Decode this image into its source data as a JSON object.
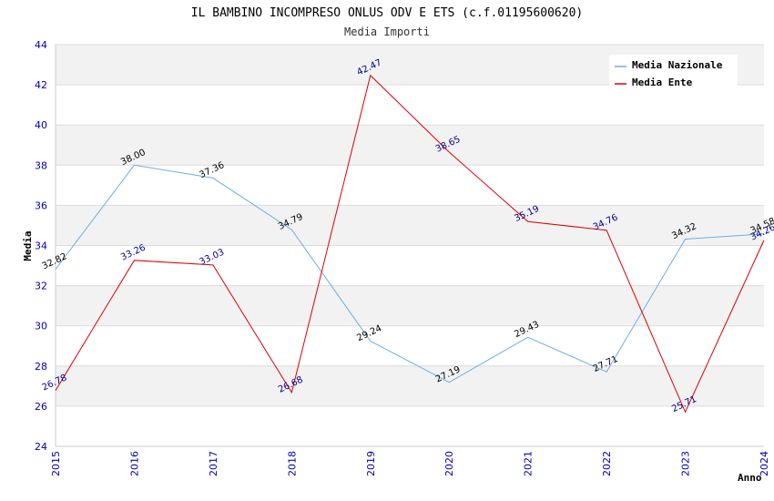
{
  "chart_data": {
    "type": "line",
    "title": "IL BAMBINO INCOMPRESO ONLUS ODV E ETS (c.f.01195600620)",
    "subtitle": "Media Importi",
    "xlabel": "Anno",
    "ylabel": "Media",
    "ylim": [
      24,
      44
    ],
    "yticks": [
      24,
      26,
      28,
      30,
      32,
      34,
      36,
      38,
      40,
      42,
      44
    ],
    "x": [
      "2015",
      "2016",
      "2017",
      "2018",
      "2019",
      "2020",
      "2021",
      "2022",
      "2023",
      "2024"
    ],
    "grid": true,
    "legend_position": "top-right",
    "series": [
      {
        "name": "Media Nazionale",
        "color": "#6aaee8",
        "label_color": "#000000",
        "values": [
          32.82,
          38.0,
          37.36,
          34.79,
          29.24,
          27.19,
          29.43,
          27.71,
          34.32,
          34.58
        ],
        "labels": [
          "32.82",
          "38.00",
          "37.36",
          "34.79",
          "29.24",
          "27.19",
          "29.43",
          "27.71",
          "34.32",
          "34.58"
        ]
      },
      {
        "name": "Media Ente",
        "color": "#dd0000",
        "label_color": "#00008b",
        "values": [
          26.78,
          33.26,
          33.03,
          26.68,
          42.47,
          38.65,
          35.19,
          34.76,
          25.71,
          34.26
        ],
        "labels": [
          "26.78",
          "33.26",
          "33.03",
          "26.68",
          "42.47",
          "38.65",
          "35.19",
          "34.76",
          "25.71",
          "34.26"
        ]
      }
    ]
  }
}
